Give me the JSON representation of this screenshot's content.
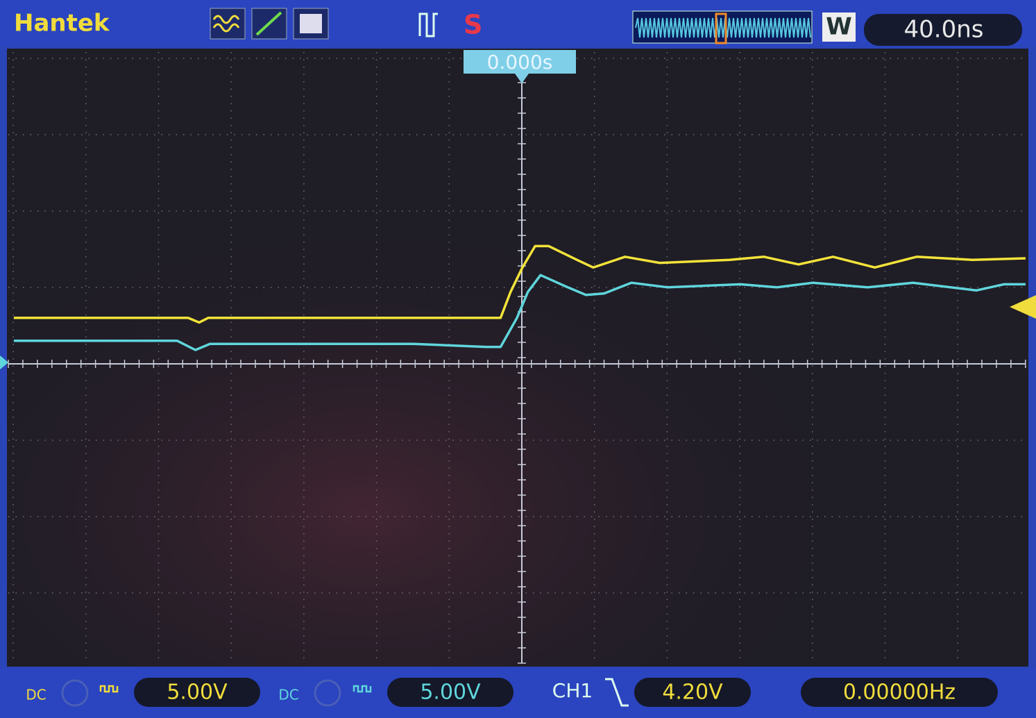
{
  "toolbar": {
    "brand": "Hantek",
    "window_mark": "W",
    "timebase": "40.0ns",
    "trigger_time": "0.000s"
  },
  "screen": {
    "xlim": [
      -283,
      277
    ],
    "ylim": [
      -19.6,
      20.4
    ],
    "traces": [
      {
        "color": "#f2e33a",
        "x": [
          -280,
          -184,
          -178,
          -173,
          -12,
          -6.5,
          0,
          7,
          14.5,
          30,
          39,
          56.5,
          75.6,
          114,
          133,
          152,
          171,
          194,
          217,
          247.5,
          277
        ],
        "values": [
          3.0,
          3.0,
          2.7,
          3.0,
          3.0,
          4.7,
          6.3,
          7.7,
          7.7,
          6.8,
          6.3,
          7.0,
          6.6,
          6.8,
          7.0,
          6.5,
          7.0,
          6.3,
          7.0,
          6.8,
          6.9
        ]
      },
      {
        "color": "#5fd6dc",
        "x": [
          -280,
          -190,
          -180,
          -172,
          -60,
          -20,
          -12,
          -3,
          3,
          10,
          25,
          35,
          45,
          60,
          80,
          120,
          140,
          160,
          190,
          215,
          250,
          265,
          277
        ],
        "values": [
          1.5,
          1.5,
          0.9,
          1.3,
          1.3,
          1.1,
          1.1,
          3.0,
          4.7,
          5.8,
          5.0,
          4.5,
          4.6,
          5.3,
          5.0,
          5.2,
          5.0,
          5.3,
          5.0,
          5.3,
          4.8,
          5.2,
          5.2
        ]
      }
    ]
  },
  "status_bar": {
    "ch1_coupling": "DC",
    "ch1_scale": "5.00V",
    "ch2_coupling": "DC",
    "ch2_scale": "5.00V",
    "trigger_source": "CH1",
    "trigger_level": "4.20V",
    "frequency": "0.00000Hz"
  }
}
